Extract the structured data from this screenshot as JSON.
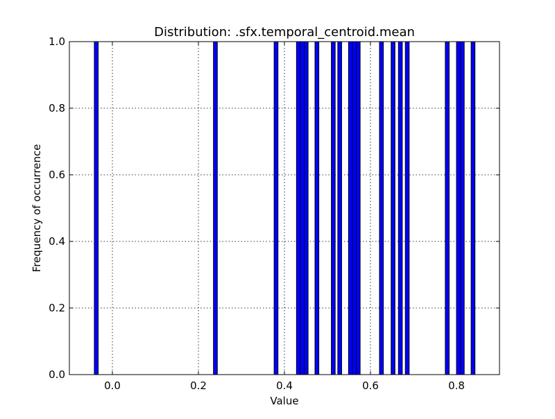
{
  "chart_data": {
    "type": "bar",
    "title": "Distribution: .sfx.temporal_centroid.mean",
    "xlabel": "Value",
    "ylabel": "Frequency of occurrence",
    "xlim": [
      -0.1,
      0.9
    ],
    "ylim": [
      0.0,
      1.0
    ],
    "xticks": [
      "0.0",
      "0.2",
      "0.4",
      "0.6",
      "0.8"
    ],
    "yticks": [
      "0.0",
      "0.2",
      "0.4",
      "0.6",
      "0.8",
      "1.0"
    ],
    "grid": true,
    "color": "#0000ff",
    "bars": [
      {
        "x0": -0.042,
        "x1": -0.033,
        "value": 1.0
      },
      {
        "x0": 0.235,
        "x1": 0.244,
        "value": 1.0
      },
      {
        "x0": 0.376,
        "x1": 0.385,
        "value": 1.0
      },
      {
        "x0": 0.428,
        "x1": 0.437,
        "value": 1.0
      },
      {
        "x0": 0.437,
        "x1": 0.446,
        "value": 1.0
      },
      {
        "x0": 0.446,
        "x1": 0.455,
        "value": 1.0
      },
      {
        "x0": 0.471,
        "x1": 0.48,
        "value": 1.0
      },
      {
        "x0": 0.509,
        "x1": 0.518,
        "value": 1.0
      },
      {
        "x0": 0.524,
        "x1": 0.533,
        "value": 1.0
      },
      {
        "x0": 0.549,
        "x1": 0.558,
        "value": 1.0
      },
      {
        "x0": 0.558,
        "x1": 0.567,
        "value": 1.0
      },
      {
        "x0": 0.567,
        "x1": 0.576,
        "value": 1.0
      },
      {
        "x0": 0.621,
        "x1": 0.63,
        "value": 1.0
      },
      {
        "x0": 0.648,
        "x1": 0.657,
        "value": 1.0
      },
      {
        "x0": 0.665,
        "x1": 0.674,
        "value": 1.0
      },
      {
        "x0": 0.681,
        "x1": 0.69,
        "value": 1.0
      },
      {
        "x0": 0.774,
        "x1": 0.783,
        "value": 1.0
      },
      {
        "x0": 0.8,
        "x1": 0.809,
        "value": 1.0
      },
      {
        "x0": 0.809,
        "x1": 0.818,
        "value": 1.0
      },
      {
        "x0": 0.834,
        "x1": 0.843,
        "value": 1.0
      }
    ]
  }
}
